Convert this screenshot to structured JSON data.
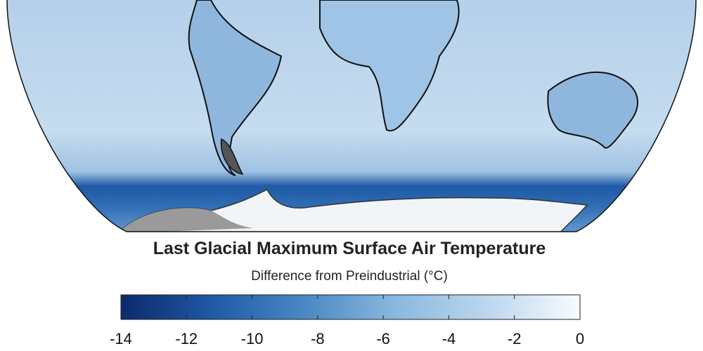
{
  "title": "Last Glacial Maximum Surface Air Temperature",
  "subtitle": "Difference from Preindustrial (°C)",
  "colorbar": {
    "range": [
      -14,
      0
    ],
    "ticks": [
      -14,
      -12,
      -10,
      -8,
      -6,
      -4,
      -2,
      0
    ],
    "colors": [
      "#0b2a6b",
      "#1f5aa6",
      "#4a88c4",
      "#8ab8de",
      "#bcd7ee",
      "#f7fbff"
    ]
  }
}
